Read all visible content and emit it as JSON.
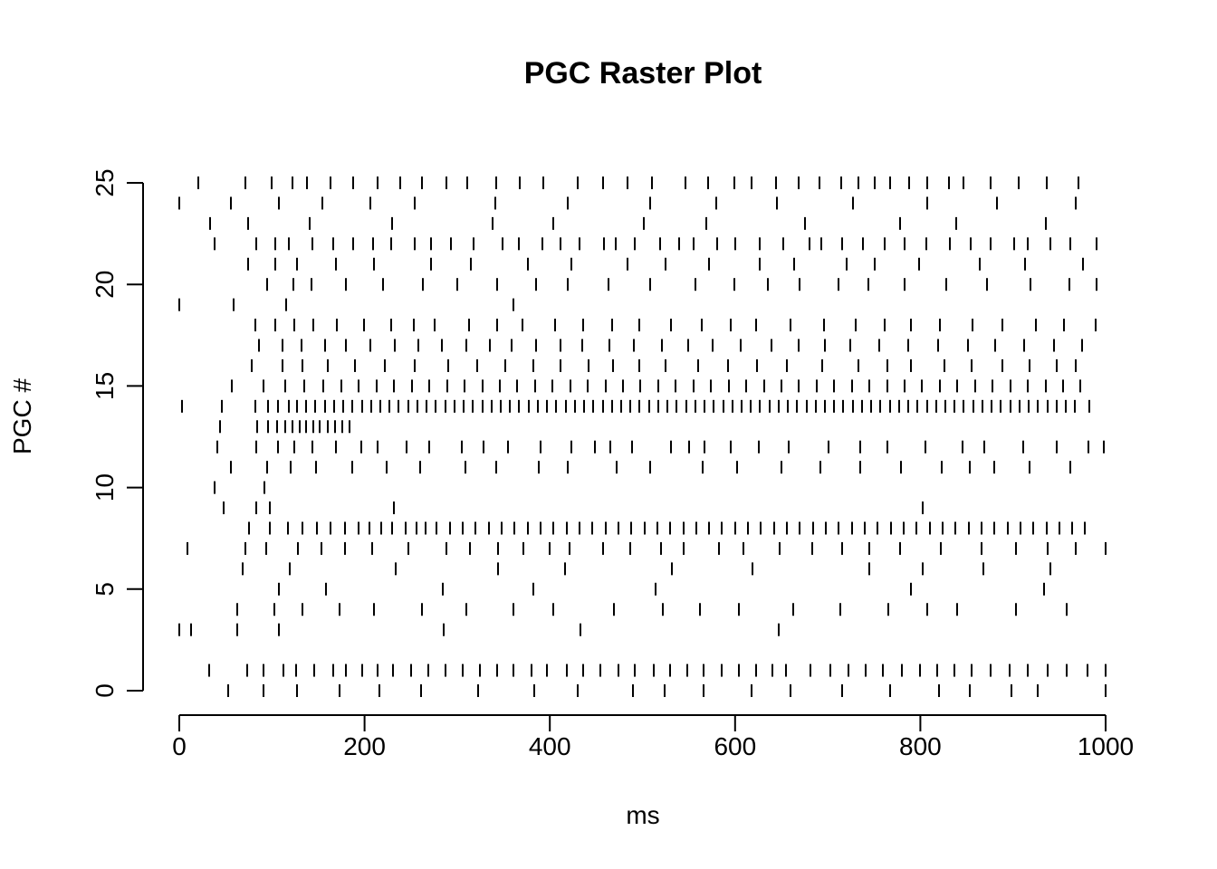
{
  "chart_data": {
    "type": "scatter",
    "marker": "vertical-tick",
    "title": "PGC Raster Plot",
    "xlabel": "ms",
    "ylabel": "PGC #",
    "xlim": [
      0,
      1000
    ],
    "ylim": [
      0,
      25
    ],
    "x_ticks": [
      0,
      200,
      400,
      600,
      800,
      1000
    ],
    "y_ticks": [
      0,
      5,
      10,
      15,
      20,
      25
    ],
    "x_tick_labels": [
      "0",
      "200",
      "400",
      "600",
      "800",
      "1000"
    ],
    "y_tick_labels": [
      "0",
      "5",
      "10",
      "15",
      "20",
      "25"
    ],
    "grid": false,
    "legend": "none",
    "color": "#000000",
    "series": [
      {
        "neuron": 0,
        "spikes": [
          53,
          91,
          127,
          173,
          216,
          261,
          323,
          383,
          430,
          490,
          524,
          566,
          618,
          660,
          716,
          767,
          820,
          853,
          898,
          927,
          1000
        ]
      },
      {
        "neuron": 1,
        "spikes": [
          32,
          73,
          91,
          112,
          126,
          146,
          166,
          180,
          197,
          214,
          231,
          250,
          269,
          287,
          306,
          325,
          343,
          361,
          380,
          397,
          418,
          436,
          455,
          474,
          492,
          512,
          530,
          548,
          566,
          586,
          604,
          623,
          640,
          655,
          681,
          703,
          722,
          741,
          760,
          780,
          800,
          818,
          837,
          855,
          876,
          896,
          916,
          937,
          958,
          980,
          1000
        ]
      },
      {
        "neuron": 3,
        "spikes": [
          0,
          13,
          63,
          108,
          285,
          433,
          647
        ]
      },
      {
        "neuron": 4,
        "spikes": [
          63,
          103,
          133,
          173,
          210,
          262,
          310,
          361,
          404,
          469,
          522,
          562,
          604,
          663,
          714,
          765,
          807,
          840,
          903,
          958
        ]
      },
      {
        "neuron": 5,
        "spikes": [
          108,
          158,
          284,
          382,
          514,
          790,
          934
        ]
      },
      {
        "neuron": 6,
        "spikes": [
          68,
          119,
          234,
          344,
          416,
          532,
          619,
          745,
          803,
          868,
          940
        ]
      },
      {
        "neuron": 7,
        "spikes": [
          9,
          71,
          94,
          128,
          153,
          179,
          208,
          247,
          288,
          314,
          344,
          371,
          400,
          421,
          457,
          487,
          520,
          544,
          583,
          609,
          648,
          683,
          716,
          745,
          778,
          822,
          866,
          903,
          937,
          968,
          1000
        ]
      },
      {
        "neuron": 8,
        "spikes": [
          75,
          98,
          117,
          133,
          149,
          163,
          179,
          194,
          205,
          218,
          230,
          244,
          256,
          266,
          278,
          292,
          306,
          320,
          334,
          348,
          362,
          376,
          390,
          404,
          418,
          432,
          446,
          460,
          474,
          488,
          502,
          516,
          530,
          544,
          558,
          572,
          586,
          600,
          614,
          628,
          642,
          656,
          670,
          684,
          698,
          712,
          726,
          740,
          754,
          768,
          782,
          796,
          810,
          824,
          838,
          852,
          866,
          880,
          894,
          908,
          922,
          936,
          950,
          964,
          978
        ]
      },
      {
        "neuron": 9,
        "spikes": [
          48,
          83,
          98,
          232,
          803
        ]
      },
      {
        "neuron": 10,
        "spikes": [
          38,
          92
        ]
      },
      {
        "neuron": 11,
        "spikes": [
          56,
          95,
          120,
          148,
          187,
          224,
          260,
          309,
          342,
          388,
          419,
          472,
          508,
          565,
          602,
          650,
          692,
          735,
          779,
          823,
          853,
          880,
          918,
          962
        ]
      },
      {
        "neuron": 12,
        "spikes": [
          41,
          83,
          107,
          124,
          144,
          169,
          196,
          214,
          245,
          270,
          305,
          328,
          355,
          390,
          423,
          449,
          465,
          489,
          531,
          550,
          567,
          595,
          626,
          658,
          701,
          735,
          764,
          805,
          846,
          869,
          911,
          947,
          981,
          998
        ]
      },
      {
        "neuron": 13,
        "spikes": [
          44,
          84,
          96,
          106,
          114,
          122,
          130,
          137,
          145,
          152,
          160,
          168,
          176,
          184
        ]
      },
      {
        "neuron": 14,
        "spikes": [
          3,
          46,
          82,
          96,
          107,
          118,
          127,
          137,
          147,
          157,
          167,
          177,
          187,
          197,
          207,
          217,
          227,
          237,
          247,
          257,
          267,
          277,
          287,
          297,
          307,
          317,
          327,
          337,
          347,
          357,
          367,
          377,
          387,
          397,
          407,
          417,
          427,
          437,
          447,
          457,
          467,
          477,
          487,
          497,
          507,
          517,
          527,
          537,
          547,
          557,
          567,
          577,
          587,
          597,
          607,
          617,
          627,
          637,
          647,
          657,
          667,
          677,
          687,
          697,
          707,
          717,
          727,
          737,
          747,
          757,
          767,
          777,
          787,
          797,
          807,
          817,
          827,
          837,
          847,
          857,
          867,
          877,
          887,
          897,
          907,
          917,
          927,
          937,
          947,
          957,
          967,
          982
        ]
      },
      {
        "neuron": 15,
        "spikes": [
          57,
          91,
          114,
          135,
          155,
          175,
          194,
          213,
          232,
          251,
          270,
          289,
          308,
          327,
          346,
          365,
          384,
          403,
          422,
          441,
          460,
          479,
          498,
          517,
          536,
          555,
          574,
          593,
          612,
          631,
          650,
          669,
          688,
          707,
          726,
          745,
          764,
          783,
          802,
          821,
          840,
          859,
          878,
          897,
          916,
          935,
          954,
          973
        ]
      },
      {
        "neuron": 16,
        "spikes": [
          78,
          111,
          133,
          160,
          190,
          222,
          254,
          290,
          322,
          352,
          382,
          412,
          442,
          468,
          497,
          525,
          560,
          592,
          624,
          656,
          694,
          733,
          764,
          790,
          826,
          855,
          889,
          918,
          947,
          968
        ]
      },
      {
        "neuron": 17,
        "spikes": [
          86,
          111,
          132,
          157,
          180,
          206,
          233,
          258,
          283,
          310,
          335,
          359,
          385,
          412,
          435,
          464,
          491,
          521,
          549,
          576,
          606,
          639,
          669,
          697,
          724,
          756,
          787,
          819,
          851,
          881,
          912,
          944,
          975
        ]
      },
      {
        "neuron": 18,
        "spikes": [
          82,
          104,
          124,
          145,
          170,
          199,
          229,
          253,
          276,
          313,
          343,
          370,
          406,
          436,
          467,
          497,
          531,
          564,
          595,
          623,
          660,
          696,
          730,
          761,
          790,
          821,
          856,
          889,
          925,
          955,
          989
        ]
      },
      {
        "neuron": 19,
        "spikes": [
          0,
          59,
          115,
          361
        ]
      },
      {
        "neuron": 20,
        "spikes": [
          95,
          123,
          143,
          180,
          220,
          263,
          300,
          343,
          385,
          419,
          463,
          508,
          557,
          599,
          635,
          670,
          712,
          744,
          783,
          828,
          872,
          919,
          961,
          990
        ]
      },
      {
        "neuron": 21,
        "spikes": [
          74,
          104,
          127,
          169,
          210,
          272,
          315,
          376,
          423,
          484,
          525,
          572,
          627,
          664,
          720,
          751,
          799,
          864,
          913,
          976
        ]
      },
      {
        "neuron": 22,
        "spikes": [
          38,
          83,
          104,
          118,
          144,
          166,
          188,
          209,
          229,
          254,
          272,
          293,
          318,
          349,
          367,
          392,
          412,
          432,
          458,
          471,
          492,
          519,
          540,
          555,
          581,
          600,
          627,
          652,
          680,
          693,
          716,
          738,
          761,
          783,
          806,
          832,
          854,
          876,
          901,
          916,
          940,
          962,
          990
        ]
      },
      {
        "neuron": 23,
        "spikes": [
          33,
          74,
          141,
          230,
          338,
          404,
          501,
          569,
          675,
          778,
          839,
          935
        ]
      },
      {
        "neuron": 24,
        "spikes": [
          0,
          56,
          108,
          154,
          206,
          254,
          341,
          419,
          508,
          580,
          645,
          727,
          807,
          883,
          968
        ]
      },
      {
        "neuron": 25,
        "spikes": [
          21,
          71,
          100,
          122,
          138,
          163,
          188,
          214,
          239,
          262,
          288,
          311,
          342,
          368,
          393,
          430,
          457,
          484,
          510,
          546,
          571,
          599,
          618,
          644,
          669,
          691,
          715,
          733,
          751,
          767,
          788,
          807,
          831,
          847,
          876,
          906,
          936,
          971
        ]
      }
    ]
  }
}
